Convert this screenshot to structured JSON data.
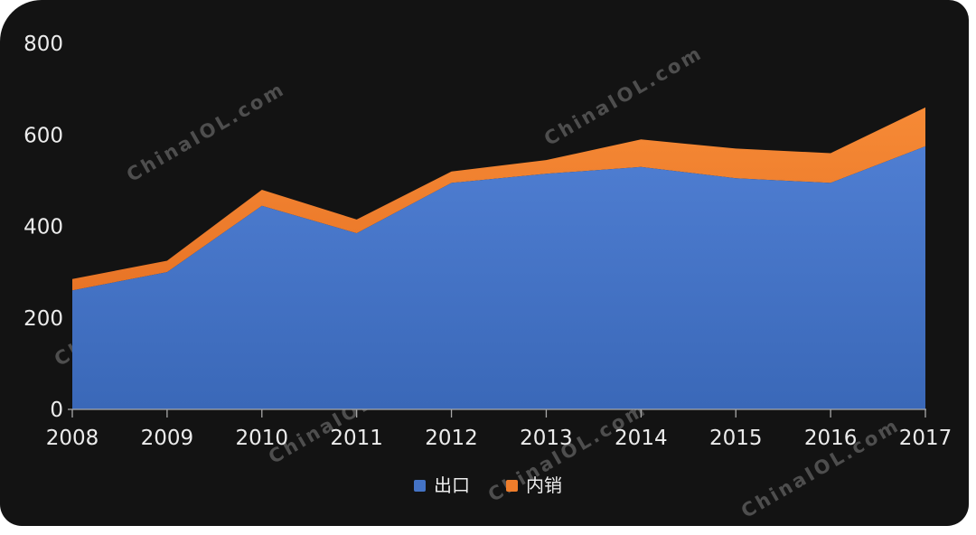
{
  "card": {
    "background_color": "#131313",
    "watermark_text": "ChinaIOL.com"
  },
  "chart_data": {
    "type": "area",
    "stacked": true,
    "title": "",
    "xlabel": "",
    "ylabel": "",
    "categories": [
      "2008",
      "2009",
      "2010",
      "2011",
      "2012",
      "2013",
      "2014",
      "2015",
      "2016",
      "2017"
    ],
    "series": [
      {
        "name": "出口",
        "color": "#4473c5",
        "color_top": "#4f7ed2",
        "color_bottom": "#3a68b8",
        "values": [
          260,
          300,
          445,
          385,
          495,
          515,
          530,
          505,
          495,
          575
        ]
      },
      {
        "name": "内销",
        "color": "#ef7d2b",
        "color_top": "#f68a36",
        "color_bottom": "#e87426",
        "values": [
          25,
          25,
          35,
          30,
          25,
          30,
          60,
          65,
          65,
          85
        ]
      }
    ],
    "stacked_totals": [
      285,
      325,
      480,
      415,
      520,
      545,
      590,
      570,
      560,
      660
    ],
    "ylim": [
      0,
      800
    ],
    "yticks": [
      0,
      200,
      400,
      600,
      800
    ],
    "grid": false,
    "legend_position": "bottom",
    "axis_color": "#a8a8a8",
    "tick_label_color": "#ececec"
  }
}
